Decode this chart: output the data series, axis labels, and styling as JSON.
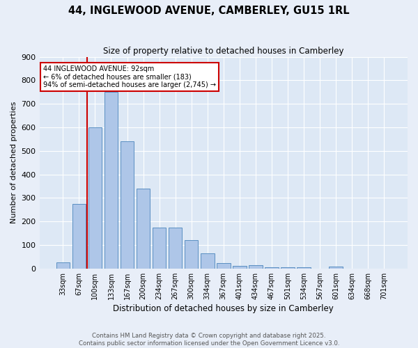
{
  "title": "44, INGLEWOOD AVENUE, CAMBERLEY, GU15 1RL",
  "subtitle": "Size of property relative to detached houses in Camberley",
  "xlabel": "Distribution of detached houses by size in Camberley",
  "ylabel": "Number of detached properties",
  "categories": [
    "33sqm",
    "67sqm",
    "100sqm",
    "133sqm",
    "167sqm",
    "200sqm",
    "234sqm",
    "267sqm",
    "300sqm",
    "334sqm",
    "367sqm",
    "401sqm",
    "434sqm",
    "467sqm",
    "501sqm",
    "534sqm",
    "567sqm",
    "601sqm",
    "634sqm",
    "668sqm",
    "701sqm"
  ],
  "values": [
    25,
    275,
    600,
    750,
    540,
    340,
    175,
    175,
    120,
    65,
    22,
    12,
    15,
    5,
    5,
    5,
    0,
    8,
    0,
    0,
    0
  ],
  "bar_color": "#aec6e8",
  "bar_edge_color": "#5a8fc2",
  "background_color": "#dde8f5",
  "grid_color": "#ffffff",
  "fig_background": "#e8eef8",
  "vline_x": 1.5,
  "vline_color": "#cc0000",
  "annotation_title": "44 INGLEWOOD AVENUE: 92sqm",
  "annotation_line1": "← 6% of detached houses are smaller (183)",
  "annotation_line2": "94% of semi-detached houses are larger (2,745) →",
  "annotation_box_color": "#cc0000",
  "ylim": [
    0,
    900
  ],
  "yticks": [
    0,
    100,
    200,
    300,
    400,
    500,
    600,
    700,
    800,
    900
  ],
  "footer_line1": "Contains HM Land Registry data © Crown copyright and database right 2025.",
  "footer_line2": "Contains public sector information licensed under the Open Government Licence v3.0."
}
